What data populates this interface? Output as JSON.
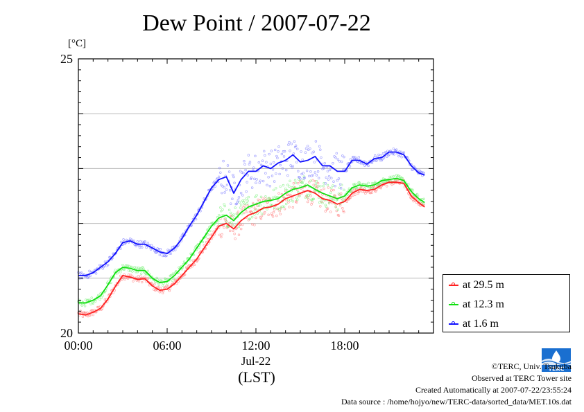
{
  "title": "Dew Point / 2007-07-22",
  "ylabel": "[°C]",
  "xlabel_date": "Jul-22",
  "xlabel_unit": "(LST)",
  "credits": {
    "copyright": "©TERC, Univ. Tsukuba",
    "site": "Observed at TERC Tower site",
    "created": "Created Automatically at 2007-07-22/23:55:24",
    "source": "Data source : /home/hojyo/new/TERC-data/sorted_data/MET.10s.dat"
  },
  "logo_text": "TERC",
  "colors": {
    "at_29_5": "#ff2020",
    "at_12_3": "#10e010",
    "at_1_6": "#1010ff"
  },
  "chart_data": {
    "type": "line",
    "title": "Dew Point / 2007-07-22",
    "ylabel": "[°C]",
    "xlabel": "Jul-22 (LST)",
    "ylim": [
      20,
      25
    ],
    "xlim": [
      0,
      24
    ],
    "y_ticks": [
      20,
      25
    ],
    "y_gridlines": [
      21,
      22,
      23,
      24
    ],
    "x_ticks": [
      "00:00",
      "06:00",
      "12:00",
      "18:00"
    ],
    "x_tick_hours": [
      0,
      6,
      12,
      18
    ],
    "grid": true,
    "legend_position": "right",
    "x": [
      0,
      0.5,
      1,
      1.5,
      2,
      2.5,
      3,
      3.5,
      4,
      4.5,
      5,
      5.5,
      6,
      6.5,
      7,
      7.5,
      8,
      8.5,
      9,
      9.5,
      10,
      10.5,
      11,
      11.5,
      12,
      12.5,
      13,
      13.5,
      14,
      14.5,
      15,
      15.5,
      16,
      16.5,
      17,
      17.5,
      18,
      18.5,
      19,
      19.5,
      20,
      20.5,
      21,
      21.5,
      22,
      22.5,
      23,
      23.4
    ],
    "series": [
      {
        "name": "at 29.5 m",
        "color": "#ff2020",
        "values": [
          20.35,
          20.33,
          20.38,
          20.45,
          20.62,
          20.85,
          21.05,
          21.02,
          20.98,
          20.99,
          20.86,
          20.78,
          20.8,
          20.9,
          21.05,
          21.2,
          21.35,
          21.55,
          21.75,
          21.95,
          22.0,
          21.9,
          22.05,
          22.15,
          22.2,
          22.28,
          22.3,
          22.35,
          22.45,
          22.5,
          22.55,
          22.6,
          22.55,
          22.45,
          22.42,
          22.35,
          22.4,
          22.55,
          22.62,
          22.6,
          22.62,
          22.7,
          22.75,
          22.75,
          22.73,
          22.5,
          22.38,
          22.3
        ]
      },
      {
        "name": "at 12.3 m",
        "color": "#10e010",
        "values": [
          20.55,
          20.55,
          20.6,
          20.68,
          20.88,
          21.1,
          21.2,
          21.18,
          21.14,
          21.14,
          21.0,
          20.92,
          20.94,
          21.05,
          21.2,
          21.35,
          21.55,
          21.75,
          21.95,
          22.1,
          22.15,
          22.05,
          22.2,
          22.3,
          22.35,
          22.4,
          22.42,
          22.45,
          22.55,
          22.62,
          22.65,
          22.7,
          22.62,
          22.55,
          22.5,
          22.45,
          22.5,
          22.65,
          22.7,
          22.68,
          22.7,
          22.78,
          22.8,
          22.82,
          22.78,
          22.58,
          22.45,
          22.38
        ]
      },
      {
        "name": "at 1.6 m",
        "color": "#1010ff",
        "values": [
          21.05,
          21.05,
          21.1,
          21.2,
          21.3,
          21.45,
          21.65,
          21.68,
          21.62,
          21.62,
          21.55,
          21.48,
          21.45,
          21.55,
          21.72,
          21.95,
          22.15,
          22.4,
          22.65,
          22.8,
          22.85,
          22.55,
          22.8,
          22.95,
          22.95,
          23.05,
          23.0,
          23.1,
          23.15,
          23.25,
          23.12,
          23.15,
          23.22,
          23.05,
          23.05,
          22.95,
          22.95,
          23.15,
          23.15,
          23.08,
          23.18,
          23.2,
          23.3,
          23.3,
          23.25,
          23.05,
          22.92,
          22.88
        ]
      }
    ]
  }
}
